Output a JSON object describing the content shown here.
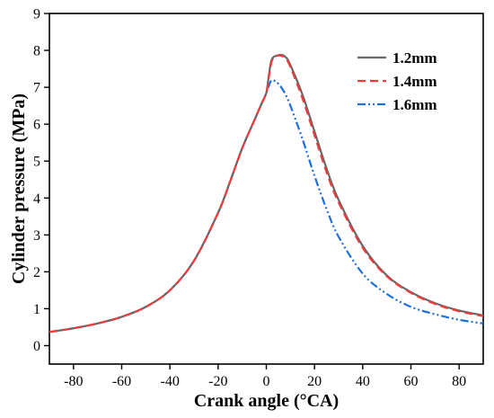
{
  "chart_data": {
    "type": "line",
    "title": "",
    "xlabel": "Crank angle (°CA)",
    "ylabel": "Cylinder pressure (MPa)",
    "xlim": [
      -90,
      90
    ],
    "ylim": [
      -0.5,
      9
    ],
    "xticks": [
      -80,
      -60,
      -40,
      -20,
      0,
      20,
      40,
      60,
      80
    ],
    "yticks": [
      0,
      1,
      2,
      3,
      4,
      5,
      6,
      7,
      8,
      9
    ],
    "xtick_labels": [
      "-80",
      "-60",
      "-40",
      "-20",
      "0",
      "20",
      "40",
      "60",
      "80"
    ],
    "ytick_labels": [
      "0",
      "1",
      "2",
      "3",
      "4",
      "5",
      "6",
      "7",
      "8",
      "9"
    ],
    "grid": false,
    "legend_position": "top-right",
    "series": [
      {
        "name": "1.2mm",
        "color": "#666666",
        "dash": "solid",
        "x": [
          -90,
          -80,
          -70,
          -60,
          -50,
          -40,
          -30,
          -20,
          -15,
          -10,
          -5,
          -2,
          0,
          1,
          2,
          3,
          4,
          6,
          8,
          10,
          15,
          20,
          25,
          30,
          40,
          50,
          60,
          70,
          80,
          90
        ],
        "y": [
          0.37,
          0.47,
          0.6,
          0.78,
          1.05,
          1.5,
          2.3,
          3.6,
          4.45,
          5.35,
          6.1,
          6.55,
          6.85,
          7.3,
          7.7,
          7.82,
          7.85,
          7.88,
          7.82,
          7.6,
          6.8,
          5.8,
          4.8,
          3.95,
          2.7,
          1.9,
          1.45,
          1.15,
          0.95,
          0.82
        ]
      },
      {
        "name": "1.4mm",
        "color": "#ee3b3b",
        "dash": "dashed",
        "x": [
          -90,
          -80,
          -70,
          -60,
          -50,
          -40,
          -30,
          -20,
          -15,
          -10,
          -5,
          -2,
          0,
          1,
          2,
          3,
          4,
          6,
          8,
          10,
          15,
          20,
          25,
          30,
          40,
          50,
          60,
          70,
          80,
          90
        ],
        "y": [
          0.37,
          0.47,
          0.6,
          0.78,
          1.05,
          1.5,
          2.3,
          3.6,
          4.45,
          5.35,
          6.1,
          6.55,
          6.85,
          7.25,
          7.65,
          7.8,
          7.85,
          7.86,
          7.78,
          7.55,
          6.7,
          5.7,
          4.7,
          3.88,
          2.65,
          1.88,
          1.43,
          1.13,
          0.93,
          0.8
        ]
      },
      {
        "name": "1.6mm",
        "color": "#1f6fd6",
        "dash": "dash-dot-dot",
        "x": [
          -90,
          -80,
          -70,
          -60,
          -50,
          -40,
          -30,
          -20,
          -15,
          -10,
          -5,
          -2,
          0,
          2,
          4,
          6,
          8,
          10,
          15,
          20,
          25,
          30,
          40,
          50,
          60,
          70,
          80,
          90
        ],
        "y": [
          0.37,
          0.47,
          0.6,
          0.78,
          1.05,
          1.5,
          2.3,
          3.6,
          4.45,
          5.35,
          6.1,
          6.55,
          6.85,
          7.18,
          7.15,
          7.02,
          6.8,
          6.5,
          5.6,
          4.6,
          3.7,
          2.95,
          1.95,
          1.4,
          1.05,
          0.85,
          0.7,
          0.6
        ]
      }
    ]
  }
}
